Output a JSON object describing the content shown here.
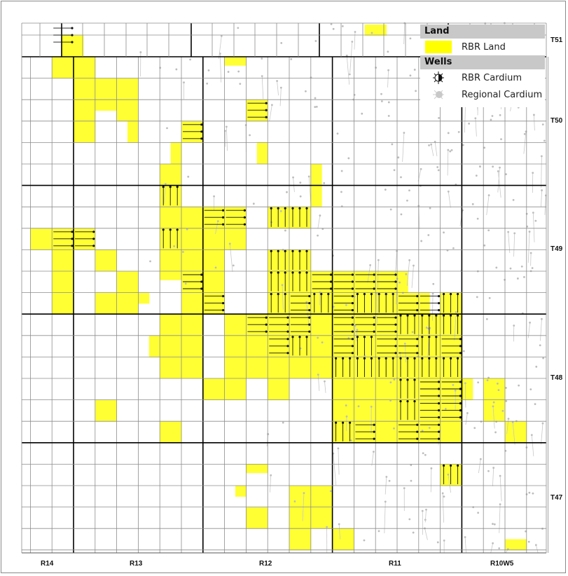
{
  "legend": {
    "land_header": "Land",
    "land_item": "RBR Land",
    "wells_header": "Wells",
    "well_items": [
      {
        "label": "RBR Cardium",
        "icon": "rbr-cardium-well-icon",
        "color": "#111111"
      },
      {
        "label": "Regional Cardium",
        "icon": "regional-cardium-well-icon",
        "color": "#bdbdbd"
      }
    ]
  },
  "township_labels": [
    "T51",
    "T50",
    "T49",
    "T48",
    "T47"
  ],
  "range_labels": [
    "R14",
    "R13",
    "R12",
    "R11",
    "R10W5"
  ],
  "colors": {
    "land": "#ffff33",
    "rbr_well": "#111111",
    "regional_well": "#bdbdbd",
    "grid": "#8c8c8c",
    "township_line": "#000000"
  }
}
